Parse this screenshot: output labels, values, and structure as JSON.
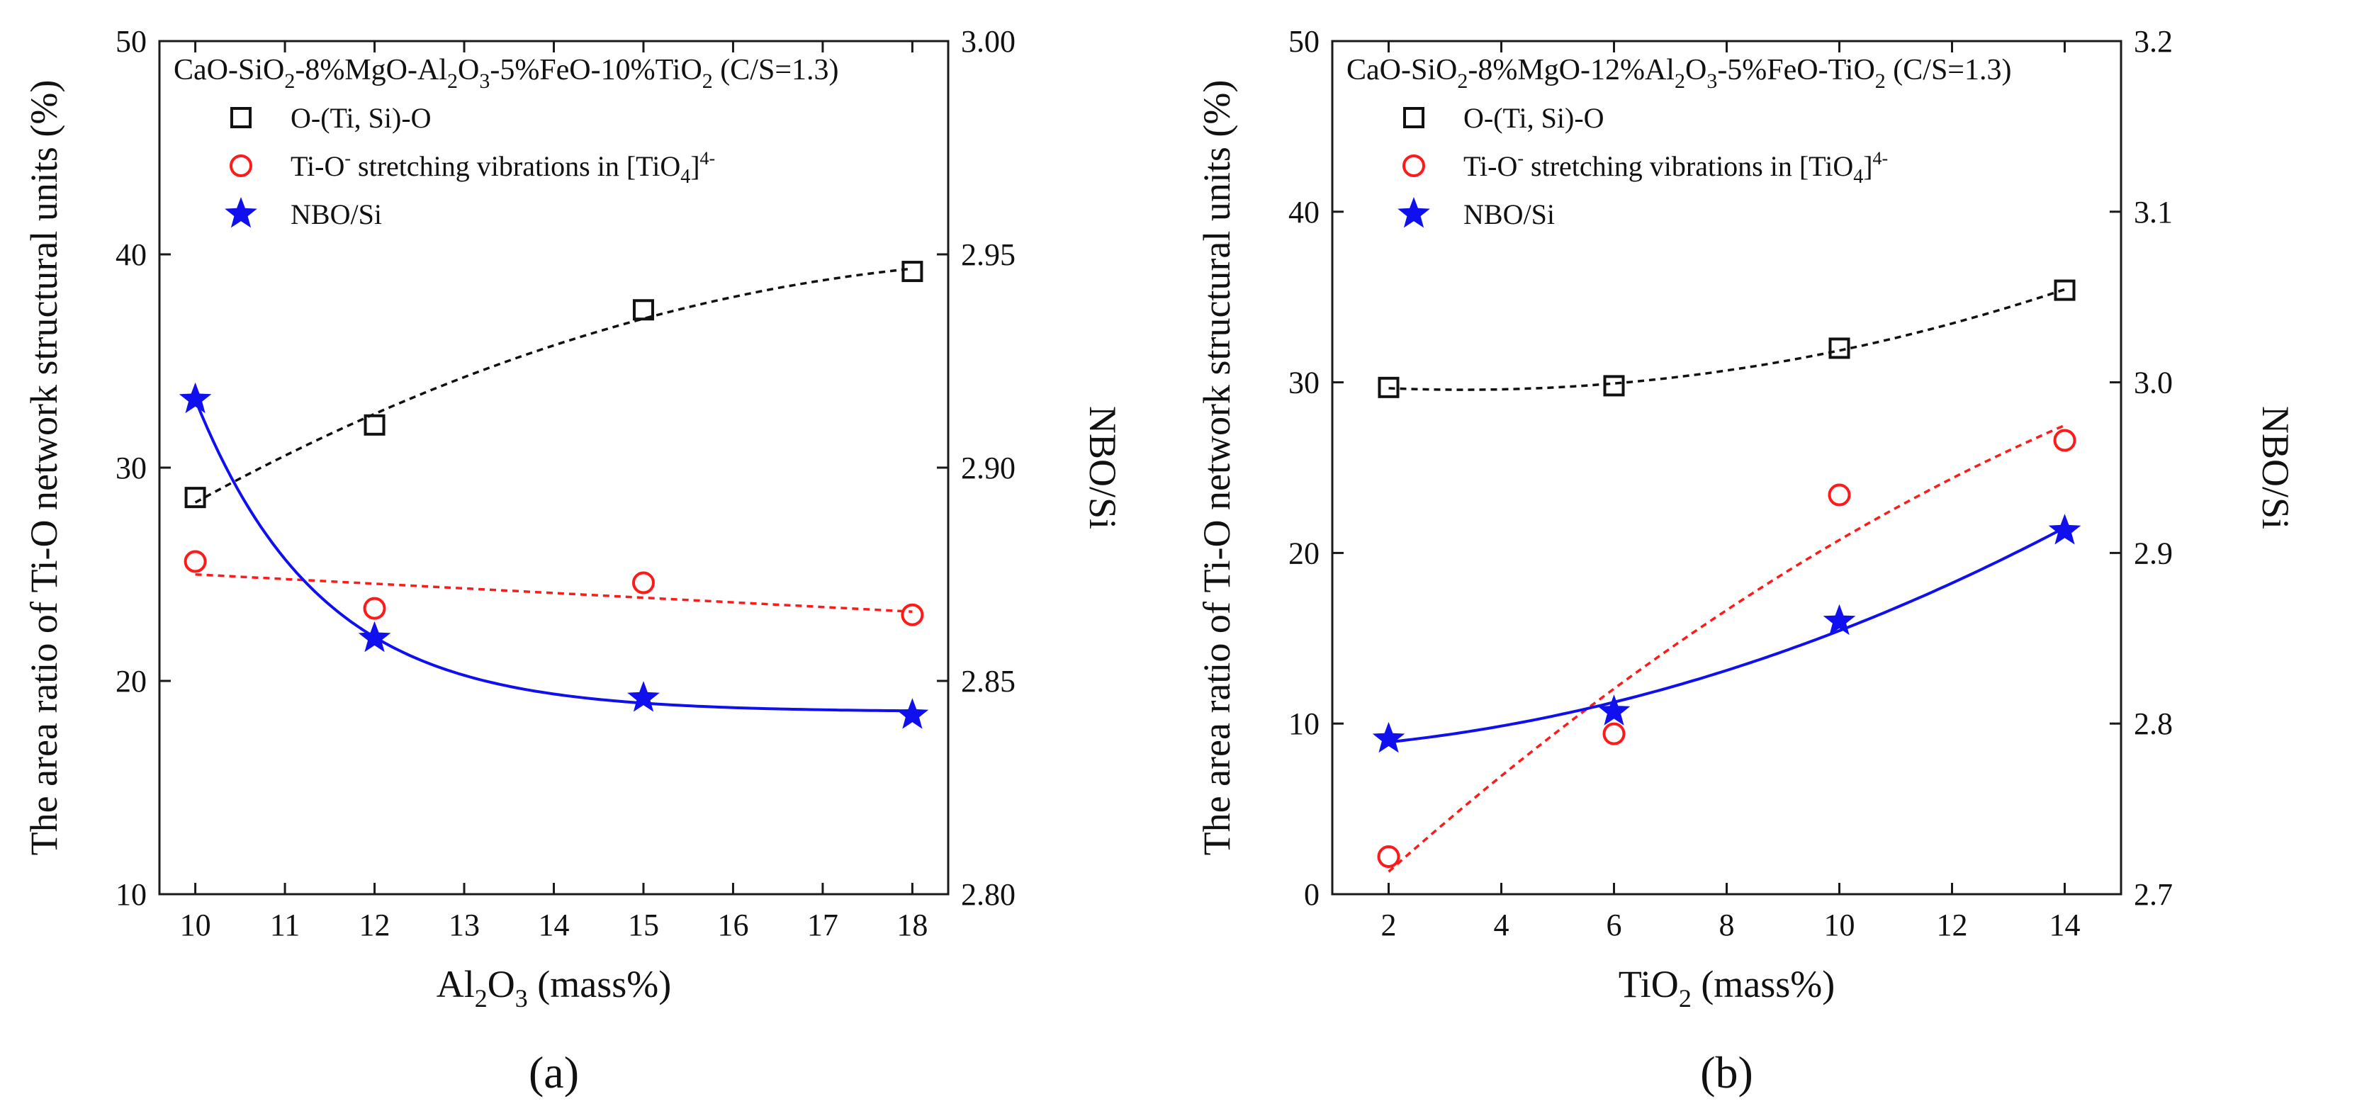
{
  "figure": {
    "colors": {
      "square_series": "#111111",
      "circle_series": "#ff1a1a",
      "star_series": "#1010ee",
      "axis": "#1a1a1a"
    }
  },
  "chart_data": [
    {
      "type": "scatter",
      "panel_label": "(a)",
      "header": {
        "base": "CaO-SiO",
        "sub1": "2",
        "mid": "-8%MgO-Al",
        "sub2": "2",
        "o": "O",
        "sub3": "3",
        "tail": "-5%FeO-10%TiO",
        "sub4": "2",
        "end": " (C/S=1.3)"
      },
      "xlabel": {
        "main": "Al",
        "sub1": "2",
        "o": "O",
        "sub2": "3",
        "tail": " (mass%)"
      },
      "ylabel_left": "The area ratio of Ti-O network structural units (%)",
      "ylabel_right": "NBO/Si",
      "x_ticks": [
        "10",
        "11",
        "12",
        "13",
        "14",
        "15",
        "16",
        "17",
        "18"
      ],
      "y_left_ticks": [
        "10",
        "20",
        "30",
        "40",
        "50"
      ],
      "y_right_ticks": [
        "2.80",
        "2.85",
        "2.90",
        "2.95",
        "3.00"
      ],
      "xlim": [
        9.6,
        18.4
      ],
      "ylim_left": [
        10,
        50
      ],
      "ylim_right": [
        2.8,
        3.0
      ],
      "legend": {
        "square": "O-(Ti, Si)-O",
        "circle_pre": "Ti-O",
        "circle_sup1": "-",
        "circle_mid": " stretching vibrations in [TiO",
        "circle_sub": "4",
        "circle_close": "]",
        "circle_sup2": "4-",
        "star": "NBO/Si"
      },
      "series": [
        {
          "name": "O-(Ti, Si)-O",
          "marker": "square",
          "axis": "left",
          "fit": "dashed",
          "x": [
            10,
            12,
            15,
            18
          ],
          "y": [
            28.6,
            32.0,
            37.4,
            39.2
          ]
        },
        {
          "name": "Ti-O- stretching vibrations in [TiO4]4-",
          "marker": "circle",
          "axis": "left",
          "fit": "dashed",
          "x": [
            10,
            12,
            15,
            18
          ],
          "y": [
            25.6,
            23.4,
            24.6,
            23.1
          ]
        },
        {
          "name": "NBO/Si",
          "marker": "star",
          "axis": "right",
          "fit": "solid",
          "x": [
            10,
            12,
            15,
            18
          ],
          "y": [
            2.916,
            2.86,
            2.846,
            2.842
          ]
        }
      ]
    },
    {
      "type": "scatter",
      "panel_label": "(b)",
      "header": {
        "base": "CaO-SiO",
        "sub1": "2",
        "mid": "-8%MgO-12%Al",
        "sub2": "2",
        "o": "O",
        "sub3": "3",
        "tail": "-5%FeO-TiO",
        "sub4": "2",
        "end": " (C/S=1.3)"
      },
      "xlabel": {
        "main": "TiO",
        "sub1": "2",
        "o": "",
        "sub2": "",
        "tail": " (mass%)"
      },
      "ylabel_left": "The area ratio of Ti-O network structural units (%)",
      "ylabel_right": "NBO/Si",
      "x_ticks": [
        "2",
        "4",
        "6",
        "8",
        "10",
        "12",
        "14"
      ],
      "y_left_ticks": [
        "0",
        "10",
        "20",
        "30",
        "40",
        "50"
      ],
      "y_right_ticks": [
        "2.7",
        "2.8",
        "2.9",
        "3.0",
        "3.1",
        "3.2"
      ],
      "xlim": [
        1.0,
        15.0
      ],
      "ylim_left": [
        0,
        50
      ],
      "ylim_right": [
        2.7,
        3.2
      ],
      "legend": {
        "square": "O-(Ti, Si)-O",
        "circle_pre": "Ti-O",
        "circle_sup1": "-",
        "circle_mid": " stretching vibrations in [TiO",
        "circle_sub": "4",
        "circle_close": "]",
        "circle_sup2": "4-",
        "star": "NBO/Si"
      },
      "series": [
        {
          "name": "O-(Ti, Si)-O",
          "marker": "square",
          "axis": "left",
          "fit": "dashed",
          "x": [
            2,
            6,
            10,
            14
          ],
          "y": [
            29.7,
            29.8,
            32.0,
            35.4
          ]
        },
        {
          "name": "Ti-O- stretching vibrations in [TiO4]4-",
          "marker": "circle",
          "axis": "left",
          "fit": "dashed",
          "x": [
            2,
            6,
            10,
            14
          ],
          "y": [
            2.2,
            9.4,
            23.4,
            26.6
          ]
        },
        {
          "name": "NBO/Si",
          "marker": "star",
          "axis": "right",
          "fit": "solid",
          "x": [
            2,
            6,
            10,
            14
          ],
          "y": [
            2.791,
            2.807,
            2.86,
            2.913
          ]
        }
      ]
    }
  ]
}
